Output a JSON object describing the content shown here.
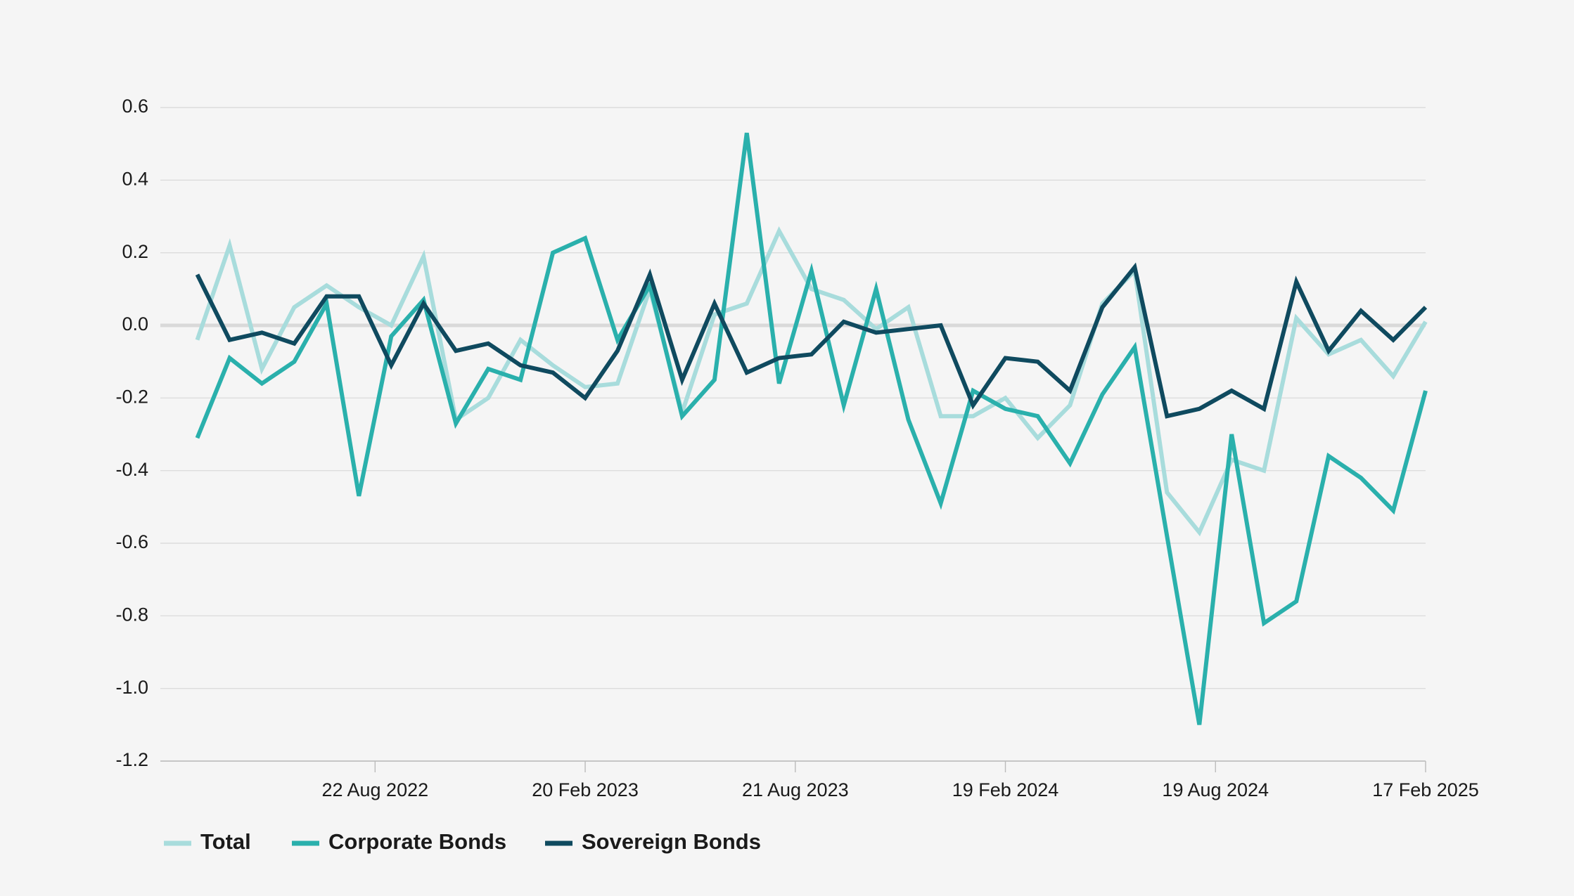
{
  "chart_data": {
    "type": "line",
    "x": [
      "2022-03-21",
      "2022-04-18",
      "2022-05-16",
      "2022-06-13",
      "2022-07-11",
      "2022-08-08",
      "2022-09-05",
      "2022-10-03",
      "2022-10-31",
      "2022-11-28",
      "2022-12-26",
      "2023-01-23",
      "2023-02-20",
      "2023-03-20",
      "2023-04-17",
      "2023-05-15",
      "2023-06-12",
      "2023-07-10",
      "2023-08-07",
      "2023-09-04",
      "2023-10-02",
      "2023-10-30",
      "2023-11-27",
      "2023-12-25",
      "2024-01-22",
      "2024-02-19",
      "2024-03-18",
      "2024-04-15",
      "2024-05-13",
      "2024-06-10",
      "2024-07-08",
      "2024-08-05",
      "2024-09-02",
      "2024-09-30",
      "2024-10-28",
      "2024-11-25",
      "2024-12-23",
      "2025-01-20",
      "2025-02-17"
    ],
    "series": [
      {
        "name": "Total",
        "color": "#a8dcdc",
        "values": [
          -0.04,
          0.22,
          -0.12,
          0.05,
          0.11,
          0.05,
          0.0,
          0.19,
          -0.26,
          -0.2,
          -0.04,
          -0.11,
          -0.17,
          -0.16,
          0.1,
          -0.24,
          0.03,
          0.06,
          0.26,
          0.1,
          0.07,
          -0.01,
          0.05,
          -0.25,
          -0.25,
          -0.2,
          -0.31,
          -0.22,
          0.06,
          0.15,
          -0.46,
          -0.57,
          -0.37,
          -0.4,
          0.02,
          -0.08,
          -0.04,
          -0.14,
          0.01
        ]
      },
      {
        "name": "Corporate Bonds",
        "color": "#2ab0ac",
        "values": [
          -0.31,
          -0.09,
          -0.16,
          -0.1,
          0.06,
          -0.47,
          -0.03,
          0.07,
          -0.27,
          -0.12,
          -0.15,
          0.2,
          0.24,
          -0.04,
          0.11,
          -0.25,
          -0.15,
          0.53,
          -0.16,
          0.15,
          -0.22,
          0.1,
          -0.26,
          -0.49,
          -0.18,
          -0.23,
          -0.25,
          -0.38,
          -0.19,
          -0.06,
          -0.58,
          -1.1,
          -0.3,
          -0.82,
          -0.76,
          -0.36,
          -0.42,
          -0.51,
          -0.18
        ]
      },
      {
        "name": "Sovereign Bonds",
        "color": "#0f4a5f",
        "values": [
          0.14,
          -0.04,
          -0.02,
          -0.05,
          0.08,
          0.08,
          -0.11,
          0.06,
          -0.07,
          -0.05,
          -0.11,
          -0.13,
          -0.2,
          -0.07,
          0.14,
          -0.15,
          0.06,
          -0.13,
          -0.09,
          -0.08,
          0.01,
          -0.02,
          -0.01,
          0.0,
          -0.22,
          -0.09,
          -0.1,
          -0.18,
          0.05,
          0.16,
          -0.25,
          -0.23,
          -0.18,
          -0.23,
          0.12,
          -0.07,
          0.04,
          -0.04,
          0.05
        ]
      }
    ],
    "xlim": [
      "2022-02-17",
      "2025-02-17"
    ],
    "xticks": [
      {
        "value": "2022-08-22",
        "label": "22 Aug 2022"
      },
      {
        "value": "2023-02-20",
        "label": "20 Feb 2023"
      },
      {
        "value": "2023-08-21",
        "label": "21 Aug 2023"
      },
      {
        "value": "2024-02-19",
        "label": "19 Feb 2024"
      },
      {
        "value": "2024-08-19",
        "label": "19 Aug 2024"
      },
      {
        "value": "2025-02-17",
        "label": "17 Feb 2025"
      }
    ],
    "ylim": [
      -1.2,
      0.6
    ],
    "yticks": [
      -1.2,
      {
        "value": -1.0,
        "label": "-1.0"
      },
      -0.8,
      -0.6,
      -0.4,
      -0.2,
      {
        "value": 0,
        "label": "0.0"
      },
      0.2,
      0.4,
      0.6
    ],
    "grid": true,
    "legend": "bottom-left"
  }
}
